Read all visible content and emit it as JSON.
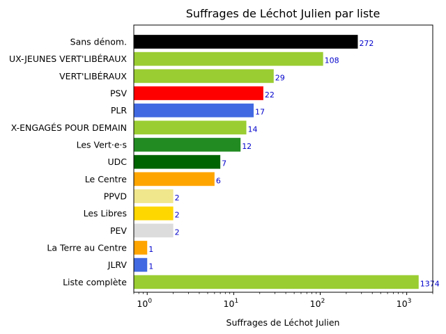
{
  "chart_data": {
    "type": "bar",
    "orientation": "horizontal",
    "title": "Suffrages de Léchot Julien par liste",
    "xlabel": "Suffrages de Léchot Julien",
    "ylabel": "",
    "x_scale": "log",
    "xlim": [
      0.7,
      2000
    ],
    "x_ticks": [
      {
        "value": 1,
        "base": "10",
        "exp": "0"
      },
      {
        "value": 10,
        "base": "10",
        "exp": "1"
      },
      {
        "value": 100,
        "base": "10",
        "exp": "2"
      },
      {
        "value": 1000,
        "base": "10",
        "exp": "3"
      }
    ],
    "grid": false,
    "legend": "none",
    "bars": [
      {
        "category": "Sans dénom.",
        "value": 272,
        "label": "272",
        "color": "#000000"
      },
      {
        "category": "UX-JEUNES VERT'LIBÉRAUX",
        "value": 108,
        "label": "108",
        "color": "#9acd32"
      },
      {
        "category": "VERT'LIBÉRAUX",
        "value": 29,
        "label": "29",
        "color": "#9acd32"
      },
      {
        "category": "PSV",
        "value": 22,
        "label": "22",
        "color": "#ff0000"
      },
      {
        "category": "PLR",
        "value": 17,
        "label": "17",
        "color": "#4169e1"
      },
      {
        "category": "X-ENGAGÉS POUR DEMAIN",
        "value": 14,
        "label": "14",
        "color": "#9acd32"
      },
      {
        "category": "Les Vert·e·s",
        "value": 12,
        "label": "12",
        "color": "#228b22"
      },
      {
        "category": "UDC",
        "value": 7,
        "label": "7",
        "color": "#006400"
      },
      {
        "category": "Le Centre",
        "value": 6,
        "label": "6",
        "color": "#ffa500"
      },
      {
        "category": "PPVD",
        "value": 2,
        "label": "2",
        "color": "#f0e68c"
      },
      {
        "category": "Les Libres",
        "value": 2,
        "label": "2",
        "color": "#ffd700"
      },
      {
        "category": "PEV",
        "value": 2,
        "label": "2",
        "color": "#dcdcdc"
      },
      {
        "category": "La Terre au Centre",
        "value": 1,
        "label": "1",
        "color": "#ffa500"
      },
      {
        "category": "JLRV",
        "value": 1,
        "label": "1",
        "color": "#4169e1"
      },
      {
        "category": "Liste complète",
        "value": 1374,
        "label": "1374",
        "color": "#9acd32"
      }
    ]
  }
}
